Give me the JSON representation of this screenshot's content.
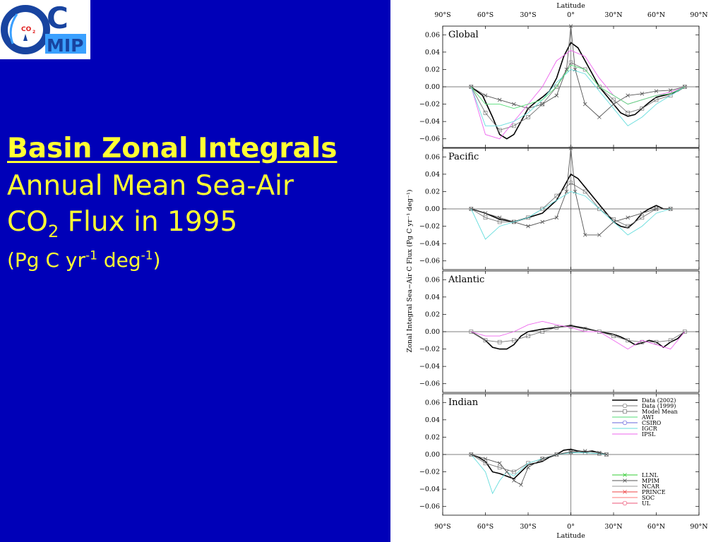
{
  "slide": {
    "heading": "Basin Zonal Integrals",
    "line2": "Annual Mean Sea-Air",
    "line3_main": "CO",
    "line3_sub": "2",
    "line3_rest": " Flux in 1995",
    "units": {
      "open": "(Pg C yr",
      "exp1": "-1",
      "mid": " deg",
      "exp2": "-1",
      "close": ")"
    }
  },
  "logo": {
    "letter": "C",
    "small": "CO",
    "small_sub": "2",
    "mip": "MIP",
    "colors": {
      "blue": "#1844a0",
      "cyan": "#3aa0ff",
      "red": "#e02020"
    }
  },
  "chart_data": {
    "type": "line",
    "top_axis_label": "Latitude",
    "xlabel": "Latitude",
    "ylabel": "Zonal Integral Sea−Air C Flux (Pg C yr⁻¹ deg⁻¹)",
    "x_ticks": [
      -90,
      -60,
      -30,
      0,
      30,
      60,
      90
    ],
    "x_tick_labels": [
      "90°S",
      "60°S",
      "30°S",
      "0°",
      "30°N",
      "60°N",
      "90°N"
    ],
    "xlim": [
      -90,
      90
    ],
    "ylim": [
      -0.07,
      0.07
    ],
    "y_ticks": [
      0.06,
      0.04,
      0.02,
      0.0,
      -0.02,
      -0.04,
      -0.06
    ],
    "y_tick_labels": [
      "0.06",
      "0.04",
      "0.02",
      "0.00",
      "−0.02",
      "−0.04",
      "−0.06"
    ],
    "grid": "zero line and equator line",
    "legend": [
      {
        "name": "Data (2002)",
        "color": "#000000",
        "marker": "none"
      },
      {
        "name": "Data (1999)",
        "color": "#777777",
        "marker": "circle"
      },
      {
        "name": "Model Mean",
        "color": "#777777",
        "marker": "square"
      },
      {
        "name": "AWI",
        "color": "#55dd77",
        "marker": "none"
      },
      {
        "name": "CSIRO",
        "color": "#6666dd",
        "marker": "circle"
      },
      {
        "name": "IGCR",
        "color": "#66dddd",
        "marker": "none"
      },
      {
        "name": "IPSL",
        "color": "#ee66ee",
        "marker": "none"
      },
      {
        "name": "LLNL",
        "color": "#33cc33",
        "marker": "x"
      },
      {
        "name": "MPIM",
        "color": "#555555",
        "marker": "x"
      },
      {
        "name": "NCAR",
        "color": "#999999",
        "marker": "none"
      },
      {
        "name": "PRINCE",
        "color": "#ee4444",
        "marker": "x"
      },
      {
        "name": "SOC",
        "color": "#ff7777",
        "marker": "none"
      },
      {
        "name": "UL",
        "color": "#ee5577",
        "marker": "circle"
      }
    ],
    "panels": [
      {
        "title": "Global",
        "series": [
          {
            "name": "Data (2002)",
            "x": [
              -70,
              -62,
              -55,
              -50,
              -45,
              -40,
              -35,
              -30,
              -25,
              -20,
              -15,
              -10,
              -5,
              0,
              5,
              10,
              15,
              20,
              25,
              30,
              35,
              40,
              45,
              50,
              55,
              60,
              65,
              70,
              75,
              80
            ],
            "y": [
              0,
              -0.01,
              -0.035,
              -0.055,
              -0.06,
              -0.055,
              -0.04,
              -0.025,
              -0.018,
              -0.012,
              -0.005,
              0.01,
              0.035,
              0.051,
              0.045,
              0.03,
              0.015,
              0.0,
              -0.01,
              -0.02,
              -0.03,
              -0.034,
              -0.032,
              -0.025,
              -0.018,
              -0.012,
              -0.01,
              -0.008,
              -0.005,
              0
            ]
          },
          {
            "name": "Model Mean",
            "x": [
              -70,
              -60,
              -50,
              -40,
              -30,
              -20,
              -10,
              0,
              10,
              20,
              30,
              40,
              50,
              60,
              70,
              80
            ],
            "y": [
              0,
              -0.03,
              -0.05,
              -0.045,
              -0.035,
              -0.02,
              0.0,
              0.028,
              0.02,
              0.0,
              -0.015,
              -0.03,
              -0.025,
              -0.015,
              -0.01,
              0
            ]
          },
          {
            "name": "MPIM",
            "x": [
              -70,
              -60,
              -50,
              -40,
              -30,
              -20,
              -10,
              -3,
              0,
              3,
              10,
              20,
              30,
              40,
              50,
              60,
              70,
              80
            ],
            "y": [
              0,
              -0.01,
              -0.015,
              -0.02,
              -0.025,
              -0.02,
              -0.01,
              0.02,
              0.07,
              0.02,
              -0.02,
              -0.035,
              -0.02,
              -0.01,
              -0.008,
              -0.005,
              -0.004,
              0
            ]
          },
          {
            "name": "IPSL",
            "x": [
              -70,
              -60,
              -50,
              -40,
              -30,
              -20,
              -10,
              0,
              10,
              20,
              30,
              40,
              50,
              60,
              70,
              80
            ],
            "y": [
              0,
              -0.055,
              -0.06,
              -0.04,
              -0.02,
              0.0,
              0.03,
              0.042,
              0.035,
              0.01,
              -0.01,
              -0.02,
              -0.015,
              -0.01,
              -0.006,
              0
            ]
          },
          {
            "name": "IGCR",
            "x": [
              -70,
              -60,
              -50,
              -40,
              -30,
              -20,
              -10,
              0,
              10,
              20,
              30,
              40,
              50,
              60,
              70,
              80
            ],
            "y": [
              0,
              -0.045,
              -0.045,
              -0.04,
              -0.03,
              -0.015,
              0.005,
              0.02,
              0.015,
              -0.005,
              -0.025,
              -0.045,
              -0.035,
              -0.02,
              -0.01,
              0
            ]
          },
          {
            "name": "AWI",
            "x": [
              -70,
              -60,
              -50,
              -40,
              -30,
              -20,
              -10,
              0,
              10,
              20,
              30,
              40,
              50,
              60,
              70,
              80
            ],
            "y": [
              0,
              -0.02,
              -0.02,
              -0.025,
              -0.02,
              -0.015,
              0.0,
              0.025,
              0.02,
              0.0,
              -0.01,
              -0.02,
              -0.015,
              -0.01,
              -0.008,
              0
            ]
          }
        ]
      },
      {
        "title": "Pacific",
        "series": [
          {
            "name": "Data (2002)",
            "x": [
              -70,
              -60,
              -50,
              -40,
              -30,
              -20,
              -10,
              -5,
              0,
              5,
              10,
              15,
              20,
              25,
              30,
              35,
              40,
              45,
              50,
              55,
              60,
              65,
              70
            ],
            "y": [
              0,
              -0.005,
              -0.012,
              -0.015,
              -0.01,
              -0.005,
              0.01,
              0.025,
              0.04,
              0.035,
              0.025,
              0.015,
              0.005,
              -0.005,
              -0.015,
              -0.02,
              -0.022,
              -0.015,
              -0.005,
              0.0,
              0.004,
              0.0,
              0
            ]
          },
          {
            "name": "Model Mean",
            "x": [
              -70,
              -60,
              -50,
              -40,
              -30,
              -20,
              -10,
              0,
              10,
              20,
              30,
              40,
              50,
              60,
              70
            ],
            "y": [
              0,
              -0.01,
              -0.015,
              -0.015,
              -0.01,
              0.0,
              0.015,
              0.03,
              0.02,
              0.0,
              -0.012,
              -0.02,
              -0.01,
              0.0,
              0
            ]
          },
          {
            "name": "MPIM",
            "x": [
              -70,
              -60,
              -50,
              -40,
              -30,
              -20,
              -10,
              -3,
              0,
              3,
              10,
              20,
              30,
              40,
              50,
              60,
              70
            ],
            "y": [
              0,
              -0.005,
              -0.01,
              -0.015,
              -0.02,
              -0.015,
              -0.01,
              0.02,
              0.07,
              0.02,
              -0.03,
              -0.03,
              -0.015,
              -0.01,
              -0.005,
              0.0,
              0
            ]
          },
          {
            "name": "IGCR",
            "x": [
              -70,
              -60,
              -50,
              -40,
              -30,
              -20,
              -10,
              0,
              10,
              20,
              30,
              40,
              50,
              60,
              70
            ],
            "y": [
              0,
              -0.035,
              -0.02,
              -0.015,
              -0.01,
              0.0,
              0.01,
              0.02,
              0.015,
              0.0,
              -0.015,
              -0.03,
              -0.02,
              -0.005,
              0
            ]
          }
        ]
      },
      {
        "title": "Atlantic",
        "series": [
          {
            "name": "Data (2002)",
            "x": [
              -70,
              -65,
              -60,
              -55,
              -50,
              -45,
              -40,
              -35,
              -30,
              -20,
              -10,
              0,
              10,
              20,
              30,
              35,
              40,
              45,
              50,
              55,
              60,
              65,
              70,
              75,
              80
            ],
            "y": [
              0,
              -0.005,
              -0.01,
              -0.018,
              -0.02,
              -0.02,
              -0.015,
              -0.005,
              0.0,
              0.003,
              0.005,
              0.007,
              0.004,
              0.0,
              -0.003,
              -0.006,
              -0.01,
              -0.015,
              -0.013,
              -0.01,
              -0.012,
              -0.018,
              -0.012,
              -0.008,
              0
            ]
          },
          {
            "name": "Model Mean",
            "x": [
              -70,
              -60,
              -50,
              -40,
              -30,
              -20,
              -10,
              0,
              10,
              20,
              30,
              40,
              50,
              60,
              70,
              80
            ],
            "y": [
              0,
              -0.01,
              -0.012,
              -0.01,
              -0.005,
              0.0,
              0.005,
              0.006,
              0.003,
              0.0,
              -0.005,
              -0.01,
              -0.012,
              -0.012,
              -0.01,
              0
            ]
          },
          {
            "name": "IPSL",
            "x": [
              -70,
              -60,
              -50,
              -40,
              -30,
              -20,
              -10,
              0,
              10,
              20,
              30,
              40,
              50,
              60,
              70,
              80
            ],
            "y": [
              0,
              -0.005,
              -0.005,
              0.0,
              0.008,
              0.012,
              0.008,
              0.005,
              0.0,
              0.0,
              -0.01,
              -0.02,
              -0.01,
              -0.015,
              -0.02,
              0
            ]
          }
        ]
      },
      {
        "title": "Indian",
        "series": [
          {
            "name": "Data (2002)",
            "x": [
              -70,
              -65,
              -60,
              -55,
              -50,
              -45,
              -40,
              -35,
              -30,
              -25,
              -20,
              -15,
              -10,
              -5,
              0,
              5,
              10,
              15,
              20,
              25
            ],
            "y": [
              0,
              -0.003,
              -0.008,
              -0.02,
              -0.022,
              -0.025,
              -0.028,
              -0.02,
              -0.012,
              -0.01,
              -0.008,
              -0.003,
              0.0,
              0.005,
              0.006,
              0.004,
              0.003,
              0.004,
              0.002,
              0
            ]
          },
          {
            "name": "Model Mean",
            "x": [
              -70,
              -60,
              -50,
              -40,
              -30,
              -20,
              -10,
              0,
              10,
              20,
              25
            ],
            "y": [
              0,
              -0.01,
              -0.015,
              -0.02,
              -0.01,
              -0.005,
              0.0,
              0.003,
              0.002,
              0.001,
              0
            ]
          },
          {
            "name": "IGCR",
            "x": [
              -70,
              -60,
              -55,
              -50,
              -45,
              -40,
              -30,
              -20,
              -10,
              0,
              10,
              20,
              25
            ],
            "y": [
              0,
              -0.02,
              -0.045,
              -0.03,
              -0.02,
              -0.025,
              -0.01,
              -0.005,
              0.0,
              0.002,
              0.002,
              0.001,
              0
            ]
          },
          {
            "name": "MPIM",
            "x": [
              -70,
              -60,
              -50,
              -45,
              -40,
              -35,
              -30,
              -20,
              -10,
              0,
              10,
              20,
              25
            ],
            "y": [
              0,
              -0.005,
              -0.01,
              -0.02,
              -0.03,
              -0.035,
              -0.015,
              -0.005,
              0.0,
              0.003,
              0.004,
              0.002,
              0
            ]
          }
        ]
      }
    ]
  }
}
